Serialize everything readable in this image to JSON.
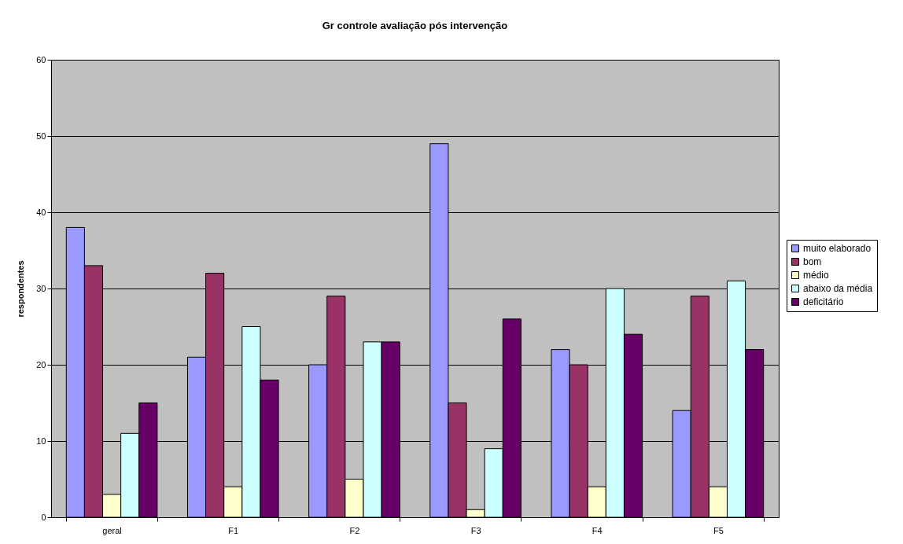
{
  "chart_data": {
    "type": "bar",
    "title": "Gr controle avaliação pós intervenção",
    "ylabel": "respondentes",
    "categories": [
      "geral",
      "F1",
      "F2",
      "F3",
      "F4",
      "F5"
    ],
    "series": [
      {
        "name": "muito elaborado",
        "color": "#9999ff",
        "values": [
          38,
          21,
          20,
          49,
          22,
          14
        ]
      },
      {
        "name": "bom",
        "color": "#993366",
        "values": [
          33,
          32,
          29,
          15,
          20,
          29
        ]
      },
      {
        "name": "médio",
        "color": "#ffffcc",
        "values": [
          3,
          4,
          5,
          1,
          4,
          4
        ]
      },
      {
        "name": "abaixo da média",
        "color": "#ccffff",
        "values": [
          11,
          25,
          23,
          9,
          30,
          31
        ]
      },
      {
        "name": "deficitário",
        "color": "#660066",
        "values": [
          15,
          18,
          23,
          26,
          24,
          22
        ]
      }
    ],
    "ylim": [
      0,
      60
    ],
    "yticks": [
      0,
      10,
      20,
      30,
      40,
      50,
      60
    ],
    "grid": "y",
    "legend": "right"
  }
}
